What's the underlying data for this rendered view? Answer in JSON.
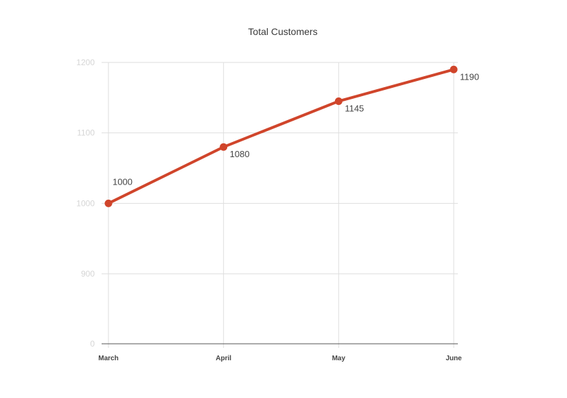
{
  "chart_data": {
    "type": "line",
    "title": "Total Customers",
    "xlabel": "",
    "ylabel": "",
    "categories": [
      "March",
      "April",
      "May",
      "June"
    ],
    "series": [
      {
        "values": [
          1000,
          1080,
          1145,
          1190
        ]
      }
    ],
    "data_labels": [
      "1000",
      "1080",
      "1145",
      "1190"
    ],
    "y_ticks": [
      {
        "label": "0",
        "value": 0
      },
      {
        "label": "900",
        "value": 900
      },
      {
        "label": "1000",
        "value": 1000
      },
      {
        "label": "1100",
        "value": 1100
      },
      {
        "label": "1200",
        "value": 1200
      }
    ],
    "y_axis_break": "non-linear: 0 shown at baseline, then 900 to 1200",
    "grid": true,
    "legend": "none",
    "colors": {
      "line": "#d0452b",
      "grid": "#dedede",
      "baseline": "#555555",
      "y_tick_text": "#d5d5d5",
      "x_tick_text": "#444444",
      "title_text": "#3a3a3a"
    }
  }
}
